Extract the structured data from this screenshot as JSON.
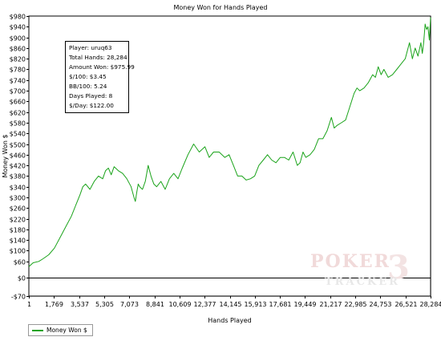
{
  "chart_data": {
    "type": "line",
    "title": "Money Won for Hands Played",
    "xlabel": "Hands Played",
    "ylabel": "Money Won $",
    "xlim": [
      1,
      28284
    ],
    "ylim": [
      -70,
      980
    ],
    "y_ticks": [
      -70,
      0,
      60,
      100,
      140,
      180,
      220,
      260,
      300,
      340,
      380,
      420,
      460,
      500,
      540,
      580,
      620,
      660,
      700,
      740,
      780,
      820,
      860,
      900,
      940,
      980
    ],
    "y_tick_labels": [
      "-$70",
      "$0",
      "$60",
      "$100",
      "$140",
      "$180",
      "$220",
      "$260",
      "$300",
      "$340",
      "$380",
      "$420",
      "$460",
      "$500",
      "$540",
      "$580",
      "$620",
      "$660",
      "$700",
      "$740",
      "$780",
      "$820",
      "$860",
      "$900",
      "$940",
      "$980"
    ],
    "x_ticks": [
      1,
      1769,
      3537,
      5305,
      7073,
      8841,
      10609,
      12377,
      14145,
      15913,
      17681,
      19449,
      21217,
      22985,
      24753,
      26521,
      28284
    ],
    "x_tick_labels": [
      "1",
      "1,769",
      "3,537",
      "5,305",
      "7,073",
      "8,841",
      "10,609",
      "12,377",
      "14,145",
      "15,913",
      "17,681",
      "19,449",
      "21,217",
      "22,985",
      "24,753",
      "26,521",
      "28,284"
    ],
    "grid": true,
    "legend": "bottom-left",
    "series": [
      {
        "name": "Money Won $",
        "color": "#1aa31a",
        "x": [
          1,
          300,
          700,
          1000,
          1400,
          1800,
          2200,
          2600,
          3000,
          3300,
          3600,
          3800,
          4000,
          4300,
          4600,
          4900,
          5200,
          5400,
          5600,
          5800,
          6000,
          6300,
          6600,
          6900,
          7200,
          7400,
          7500,
          7600,
          7700,
          7800,
          8000,
          8200,
          8400,
          8600,
          8800,
          9000,
          9300,
          9600,
          9900,
          10200,
          10500,
          10800,
          11200,
          11600,
          12000,
          12400,
          12700,
          13000,
          13400,
          13800,
          14100,
          14400,
          14700,
          15000,
          15300,
          15600,
          15900,
          16200,
          16500,
          16800,
          17100,
          17400,
          17700,
          18000,
          18300,
          18600,
          18900,
          19100,
          19300,
          19500,
          19800,
          20100,
          20400,
          20700,
          21000,
          21300,
          21500,
          21700,
          22000,
          22300,
          22600,
          22900,
          23100,
          23300,
          23600,
          23900,
          24200,
          24400,
          24600,
          24800,
          25000,
          25300,
          25600,
          25900,
          26200,
          26500,
          26800,
          27000,
          27200,
          27400,
          27600,
          27700,
          27800,
          27900,
          28000,
          28100,
          28200,
          28284
        ],
        "y": [
          40,
          55,
          60,
          70,
          85,
          110,
          150,
          190,
          230,
          270,
          310,
          340,
          350,
          330,
          360,
          380,
          370,
          400,
          410,
          385,
          415,
          400,
          390,
          370,
          340,
          300,
          285,
          320,
          350,
          340,
          330,
          360,
          420,
          380,
          350,
          340,
          360,
          330,
          370,
          390,
          370,
          410,
          460,
          500,
          470,
          490,
          450,
          470,
          470,
          450,
          460,
          420,
          380,
          380,
          365,
          370,
          380,
          420,
          440,
          460,
          440,
          430,
          450,
          450,
          440,
          470,
          420,
          430,
          470,
          450,
          460,
          480,
          520,
          520,
          550,
          600,
          560,
          570,
          580,
          590,
          640,
          690,
          710,
          700,
          710,
          730,
          760,
          750,
          790,
          760,
          780,
          750,
          760,
          780,
          800,
          820,
          880,
          820,
          860,
          830,
          880,
          840,
          880,
          950,
          930,
          940,
          890,
          975
        ]
      }
    ]
  },
  "stats_box": {
    "player": "Player: uruq63",
    "total_hands": "Total Hands: 28,284",
    "amount_won": "Amount Won: $975.99",
    "per_100": "$/100: $3.45",
    "bb_100": "BB/100: 5.24",
    "days_played": "Days Played: 8",
    "per_day": "$/Day: $122.00"
  },
  "watermark": {
    "line1": "POKER",
    "line2": "TRACKER",
    "mark": "3"
  }
}
